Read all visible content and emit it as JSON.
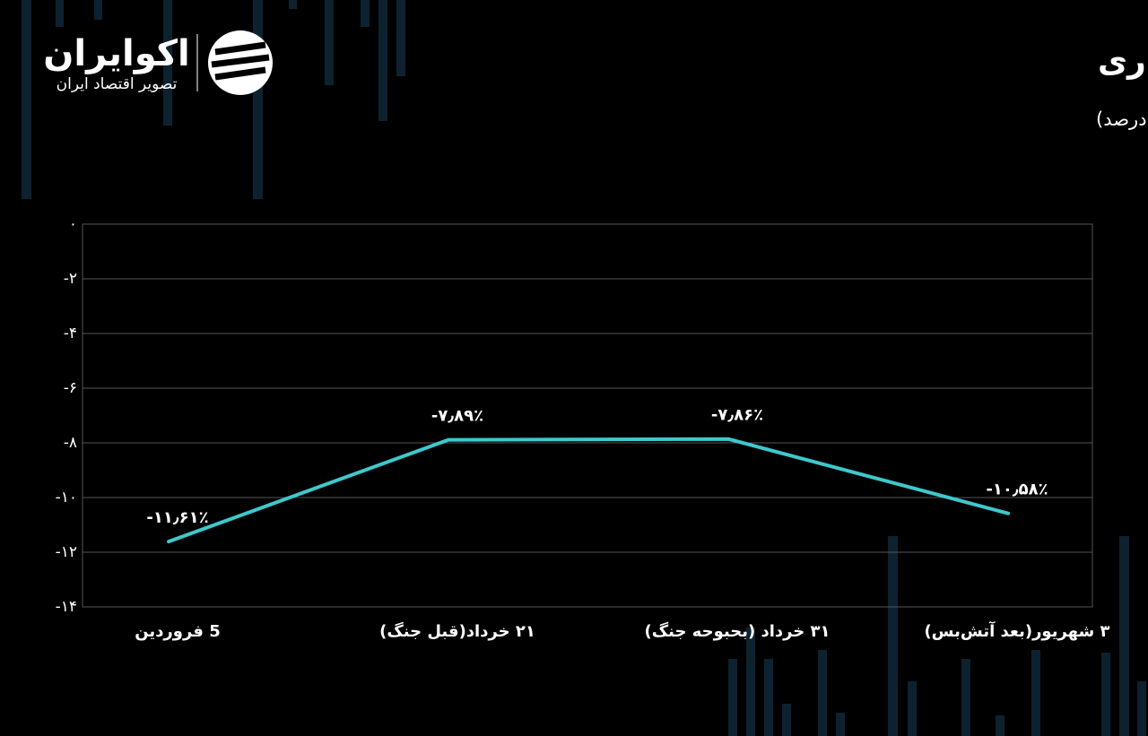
{
  "brand": {
    "name": "اکوایران",
    "tagline": "تصویر اقتصاد ایران"
  },
  "chart_data": {
    "type": "line",
    "title": "اسپرد اعتباری",
    "subtitle": "(واحد: درصد)",
    "categories": [
      "5 فروردین",
      "۲۱ خرداد(قبل جنگ)",
      "۳۱ خرداد (بحبوحه جنگ)",
      "۳ شهریور(بعد آتش‌بس)"
    ],
    "values": [
      -11.61,
      -7.89,
      -7.86,
      -10.58
    ],
    "value_labels": [
      "-۱۱٫۶۱٪",
      "-۷٫۸۹٪",
      "-۷٫۸۶٪",
      "-۱۰٫۵۸٪"
    ],
    "color": "#3ec8cc",
    "ylim": [
      -14,
      0
    ],
    "yticks": [
      {
        "value": 0,
        "label": "۰"
      },
      {
        "value": -2,
        "label": "-۲"
      },
      {
        "value": -4,
        "label": "-۴"
      },
      {
        "value": -6,
        "label": "-۶"
      },
      {
        "value": -8,
        "label": "-۸"
      },
      {
        "value": -10,
        "label": "-۱۰"
      },
      {
        "value": -12,
        "label": "-۱۲"
      },
      {
        "value": -14,
        "label": "-۱۴"
      }
    ],
    "grid": true
  }
}
